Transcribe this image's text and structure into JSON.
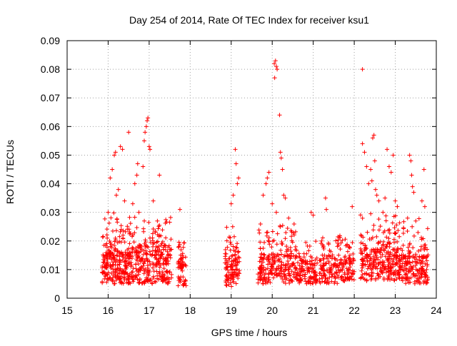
{
  "chart_data": {
    "type": "scatter",
    "title": "Day 254 of 2014, Rate Of TEC Index for receiver ksu1",
    "xlabel": "GPS time / hours",
    "ylabel": "ROTI / TECUs",
    "xlim": [
      15,
      24
    ],
    "ylim": [
      0,
      0.09
    ],
    "xticks": [
      "15",
      "16",
      "17",
      "18",
      "19",
      "20",
      "21",
      "22",
      "23",
      "24"
    ],
    "yticks": [
      "0",
      "0.01",
      "0.02",
      "0.03",
      "0.04",
      "0.05",
      "0.06",
      "0.07",
      "0.08",
      "0.09"
    ],
    "grid": true,
    "marker": "+",
    "series": [
      {
        "name": "ROTI",
        "color": "#ff0000",
        "clusters": [
          {
            "x": [
              15.85,
              16.55
            ],
            "core": [
              0.005,
              0.016
            ],
            "spread": [
              0.016,
              0.03
            ],
            "n": 260
          },
          {
            "x": [
              16.55,
              17.55
            ],
            "core": [
              0.005,
              0.018
            ],
            "spread": [
              0.018,
              0.03
            ],
            "n": 300
          },
          {
            "x": [
              17.7,
              17.9
            ],
            "core": [
              0.004,
              0.014
            ],
            "spread": [
              0.014,
              0.02
            ],
            "n": 60
          },
          {
            "x": [
              18.85,
              19.2
            ],
            "core": [
              0.004,
              0.015
            ],
            "spread": [
              0.015,
              0.025
            ],
            "n": 110
          },
          {
            "x": [
              19.65,
              20.6
            ],
            "core": [
              0.005,
              0.015
            ],
            "spread": [
              0.015,
              0.026
            ],
            "n": 250
          },
          {
            "x": [
              20.6,
              21.1
            ],
            "core": [
              0.005,
              0.013
            ],
            "spread": [
              0.013,
              0.02
            ],
            "n": 120
          },
          {
            "x": [
              21.15,
              21.7
            ],
            "core": [
              0.005,
              0.015
            ],
            "spread": [
              0.015,
              0.022
            ],
            "n": 130
          },
          {
            "x": [
              21.7,
              22.0
            ],
            "core": [
              0.006,
              0.014
            ],
            "spread": [
              0.014,
              0.024
            ],
            "n": 70
          },
          {
            "x": [
              22.15,
              23.1
            ],
            "core": [
              0.006,
              0.017
            ],
            "spread": [
              0.017,
              0.03
            ],
            "n": 280
          },
          {
            "x": [
              23.1,
              23.8
            ],
            "core": [
              0.005,
              0.015
            ],
            "spread": [
              0.015,
              0.028
            ],
            "n": 200
          }
        ],
        "points": [
          [
            16.05,
            0.042
          ],
          [
            16.1,
            0.045
          ],
          [
            16.15,
            0.05
          ],
          [
            16.18,
            0.051
          ],
          [
            16.3,
            0.053
          ],
          [
            16.35,
            0.052
          ],
          [
            16.5,
            0.058
          ],
          [
            16.65,
            0.04
          ],
          [
            16.7,
            0.043
          ],
          [
            16.72,
            0.047
          ],
          [
            16.85,
            0.046
          ],
          [
            16.88,
            0.055
          ],
          [
            16.9,
            0.058
          ],
          [
            16.93,
            0.06
          ],
          [
            16.95,
            0.062
          ],
          [
            16.97,
            0.063
          ],
          [
            17.0,
            0.053
          ],
          [
            17.02,
            0.052
          ],
          [
            17.25,
            0.043
          ],
          [
            16.0,
            0.03
          ],
          [
            16.2,
            0.036
          ],
          [
            16.25,
            0.038
          ],
          [
            16.4,
            0.034
          ],
          [
            16.6,
            0.033
          ],
          [
            16.75,
            0.03
          ],
          [
            17.1,
            0.034
          ],
          [
            17.2,
            0.027
          ],
          [
            17.75,
            0.031
          ],
          [
            19.0,
            0.033
          ],
          [
            19.05,
            0.036
          ],
          [
            19.1,
            0.052
          ],
          [
            19.12,
            0.047
          ],
          [
            19.15,
            0.04
          ],
          [
            19.18,
            0.042
          ],
          [
            19.78,
            0.036
          ],
          [
            19.85,
            0.04
          ],
          [
            19.88,
            0.042
          ],
          [
            19.92,
            0.044
          ],
          [
            20.0,
            0.033
          ],
          [
            20.05,
            0.082
          ],
          [
            20.08,
            0.083
          ],
          [
            20.1,
            0.081
          ],
          [
            20.12,
            0.08
          ],
          [
            20.06,
            0.077
          ],
          [
            20.18,
            0.064
          ],
          [
            20.2,
            0.051
          ],
          [
            20.22,
            0.049
          ],
          [
            20.25,
            0.045
          ],
          [
            20.28,
            0.036
          ],
          [
            20.32,
            0.035
          ],
          [
            20.1,
            0.03
          ],
          [
            20.4,
            0.028
          ],
          [
            20.95,
            0.03
          ],
          [
            21.0,
            0.029
          ],
          [
            21.3,
            0.035
          ],
          [
            21.32,
            0.031
          ],
          [
            21.95,
            0.032
          ],
          [
            22.2,
            0.08
          ],
          [
            22.2,
            0.054
          ],
          [
            22.25,
            0.051
          ],
          [
            22.3,
            0.046
          ],
          [
            22.35,
            0.04
          ],
          [
            22.4,
            0.045
          ],
          [
            22.43,
            0.041
          ],
          [
            22.45,
            0.056
          ],
          [
            22.48,
            0.057
          ],
          [
            22.5,
            0.048
          ],
          [
            22.52,
            0.038
          ],
          [
            22.55,
            0.036
          ],
          [
            22.6,
            0.034
          ],
          [
            22.7,
            0.03
          ],
          [
            22.75,
            0.035
          ],
          [
            22.8,
            0.052
          ],
          [
            22.85,
            0.046
          ],
          [
            22.9,
            0.044
          ],
          [
            22.95,
            0.05
          ],
          [
            23.0,
            0.034
          ],
          [
            23.05,
            0.032
          ],
          [
            23.35,
            0.05
          ],
          [
            23.38,
            0.048
          ],
          [
            23.4,
            0.043
          ],
          [
            23.42,
            0.039
          ],
          [
            23.45,
            0.037
          ],
          [
            23.3,
            0.028
          ],
          [
            23.65,
            0.034
          ],
          [
            23.7,
            0.045
          ],
          [
            23.72,
            0.032
          ],
          [
            23.5,
            0.027
          ]
        ]
      }
    ]
  }
}
